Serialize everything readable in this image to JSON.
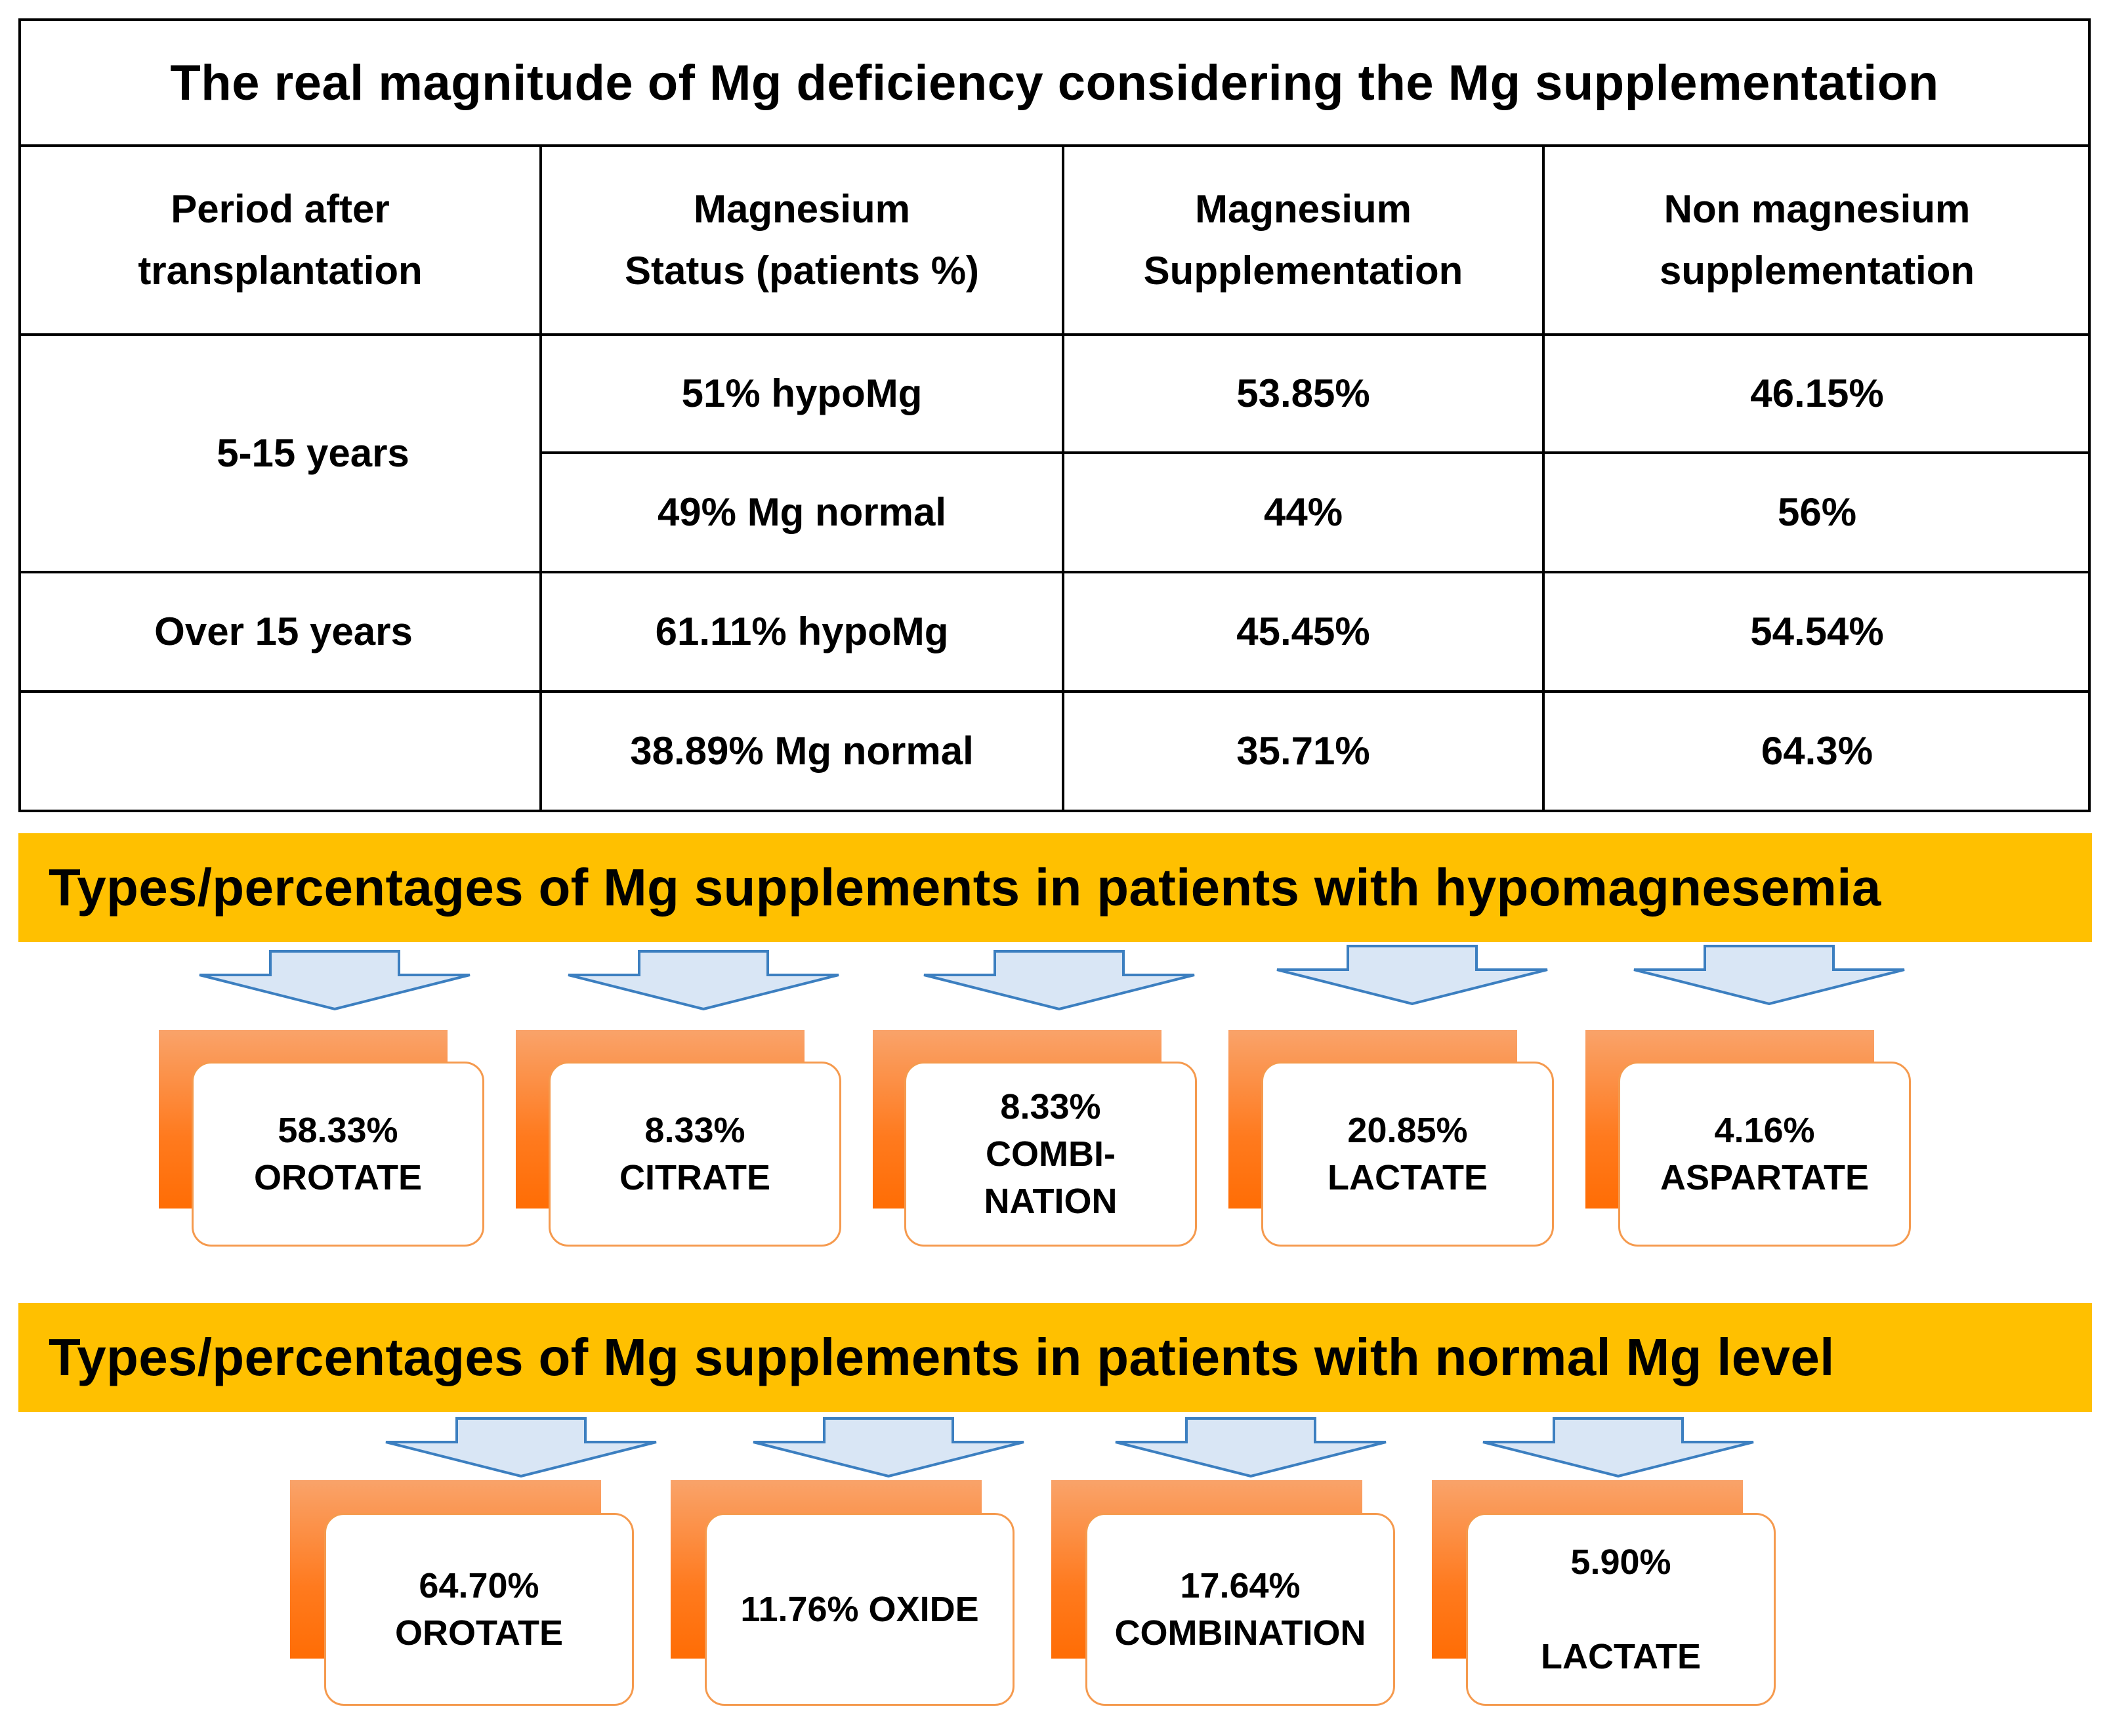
{
  "table": {
    "title": "The real magnitude of Mg deficiency considering the Mg supplementation",
    "headers": [
      "Period after\ntransplantation",
      "Magnesium\nStatus  (patients %)",
      "Magnesium\nSupplementation",
      "Non magnesium\nsupplementation"
    ],
    "groups": [
      {
        "period": "5-15 years"
      },
      {
        "period": "Over 15 years"
      }
    ],
    "rows": [
      {
        "status": "51%  hypoMg",
        "supp": "53.85%",
        "nonsupp": "46.15%"
      },
      {
        "status": "49% Mg normal",
        "supp": "44%",
        "nonsupp": "56%"
      },
      {
        "status": "61.11% hypoMg",
        "supp": "45.45%",
        "nonsupp": "54.54%"
      },
      {
        "status": "38.89% Mg normal",
        "supp": "35.71%",
        "nonsupp": "64.3%"
      }
    ]
  },
  "hypo": {
    "heading": "Types/percentages of Mg supplements in patients with hypomagnesemia",
    "items": [
      "58.33%\nOROTATE",
      "8.33%\nCITRATE",
      "8.33%\nCOMBI-\nNATION",
      "20.85%\nLACTATE",
      "4.16%\nASPARTATE"
    ]
  },
  "normal": {
    "heading": "Types/percentages of Mg supplements in patients with normal Mg  level",
    "items": [
      "64.70%\nOROTATE",
      "11.76% OXIDE",
      "17.64%\nCOMBINATION",
      "5.90%\n\nLACTATE"
    ]
  },
  "colors": {
    "banner": "#ffc000",
    "arrow_fill": "#d9e6f5",
    "arrow_stroke": "#3c7fc0",
    "box_tab": "#ff7a1e",
    "box_border": "#f59a4e"
  }
}
